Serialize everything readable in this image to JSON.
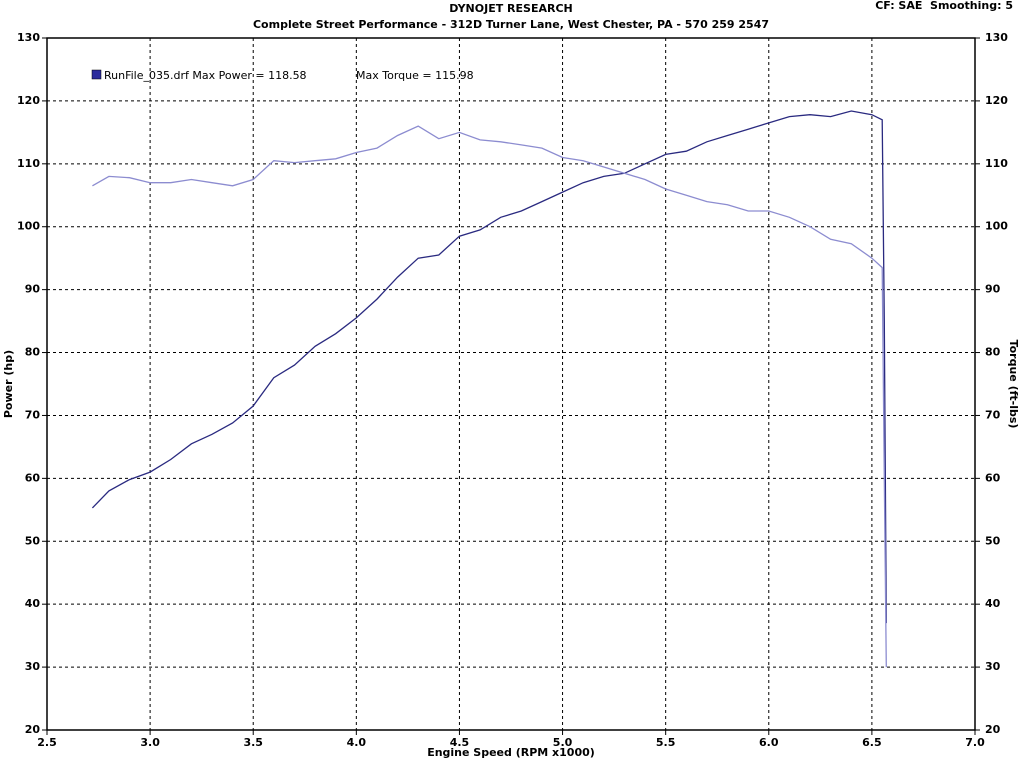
{
  "chart_data": {
    "type": "line",
    "title": "DYNOJET RESEARCH",
    "subtitle": "Complete Street Performance - 312D Turner Lane, West Chester, PA - 570 259 2547",
    "settings_text": "CF: SAE  Smoothing: 5",
    "legend_text": [
      "RunFile_035.drf Max Power = 118.58",
      "Max Torque = 115.98"
    ],
    "legend_color": "#2b2b9c",
    "x_label": "Engine Speed (RPM x1000)",
    "y_label": "Power (hp)",
    "y2_label": "Torque (ft-lbs)",
    "xlim": [
      2.5,
      7.0
    ],
    "xticks": [
      2.5,
      {
        "value": 3,
        "label": "3.0"
      },
      3.5,
      {
        "value": 4,
        "label": "4.0"
      },
      4.5,
      {
        "value": 5,
        "label": "5.0"
      },
      5.5,
      {
        "value": 6,
        "label": "6.0"
      },
      6.5,
      {
        "value": 7,
        "label": "7.0"
      }
    ],
    "ylim": [
      20,
      130
    ],
    "yticks": [
      20,
      30,
      40,
      50,
      60,
      70,
      80,
      90,
      100,
      110,
      120,
      130
    ],
    "y2lim": [
      20,
      130
    ],
    "y2ticks": [
      20,
      30,
      40,
      50,
      60,
      70,
      80,
      90,
      100,
      110,
      120,
      130
    ],
    "grid": true,
    "x": [
      2.72,
      2.8,
      2.9,
      3.0,
      3.1,
      3.2,
      3.3,
      3.4,
      3.5,
      3.6,
      3.7,
      3.8,
      3.9,
      4.0,
      4.1,
      4.2,
      4.3,
      4.4,
      4.5,
      4.6,
      4.7,
      4.8,
      4.9,
      5.0,
      5.1,
      5.2,
      5.3,
      5.4,
      5.5,
      5.6,
      5.7,
      5.8,
      5.9,
      6.0,
      6.1,
      6.2,
      6.3,
      6.4,
      6.5,
      6.55,
      6.56,
      6.57
    ],
    "series": [
      {
        "color": "#2a2a80",
        "values": [
          55.3,
          58,
          59.8,
          61,
          63,
          65.5,
          67,
          68.8,
          71.5,
          76,
          78,
          81,
          83,
          85.5,
          88.5,
          92,
          95,
          95.5,
          98.5,
          99.5,
          101.5,
          102.5,
          104,
          105.5,
          107,
          108,
          108.5,
          110,
          111.5,
          112,
          113.5,
          114.5,
          115.5,
          116.5,
          117.5,
          117.8,
          117.5,
          118.4,
          117.8,
          117,
          85,
          37
        ]
      },
      {
        "color": "#8c8cd0",
        "axis": "y2",
        "values": [
          106.5,
          108,
          107.8,
          107,
          107,
          107.5,
          107,
          106.5,
          107.5,
          110.5,
          110.2,
          110.5,
          110.8,
          111.8,
          112.5,
          114.5,
          116,
          114,
          115,
          113.8,
          113.5,
          113,
          112.5,
          111,
          110.5,
          109.5,
          108.5,
          107.5,
          106,
          105,
          104,
          103.5,
          102.5,
          102.5,
          101.5,
          100,
          98,
          97.3,
          95,
          93.5,
          60,
          30
        ]
      }
    ]
  }
}
